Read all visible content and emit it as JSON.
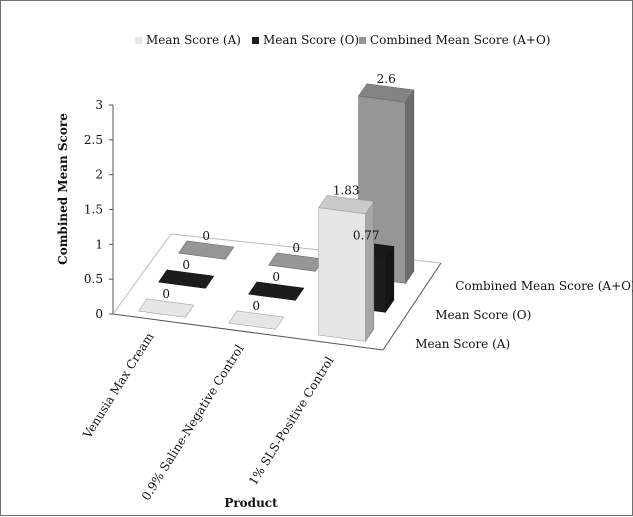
{
  "chart_data": {
    "type": "bar",
    "title": "",
    "xlabel": "Product",
    "ylabel": "Combined Mean Score",
    "ylim": [
      0,
      3
    ],
    "yticks": [
      0,
      0.5,
      1,
      1.5,
      2,
      2.5,
      3
    ],
    "grid": false,
    "legend_position": "top",
    "categories": [
      "Venusia Max Cream",
      "0.9% Saline-Negative Control",
      "1% SLS-Positive Control"
    ],
    "series": [
      {
        "name": "Mean Score (A)",
        "values": [
          0,
          0,
          1.83
        ],
        "color": "#e6e6e6"
      },
      {
        "name": "Mean Score (O)",
        "values": [
          0,
          0,
          0.77
        ],
        "color": "#1c1c1c"
      },
      {
        "name": "Combined Mean Score (A+O)",
        "values": [
          0,
          0,
          2.6
        ],
        "color": "#969696"
      }
    ],
    "data_labels": [
      [
        "0",
        "0",
        "1.83"
      ],
      [
        "0",
        "0",
        "0.77"
      ],
      [
        "0",
        "0",
        "2.6"
      ]
    ]
  }
}
